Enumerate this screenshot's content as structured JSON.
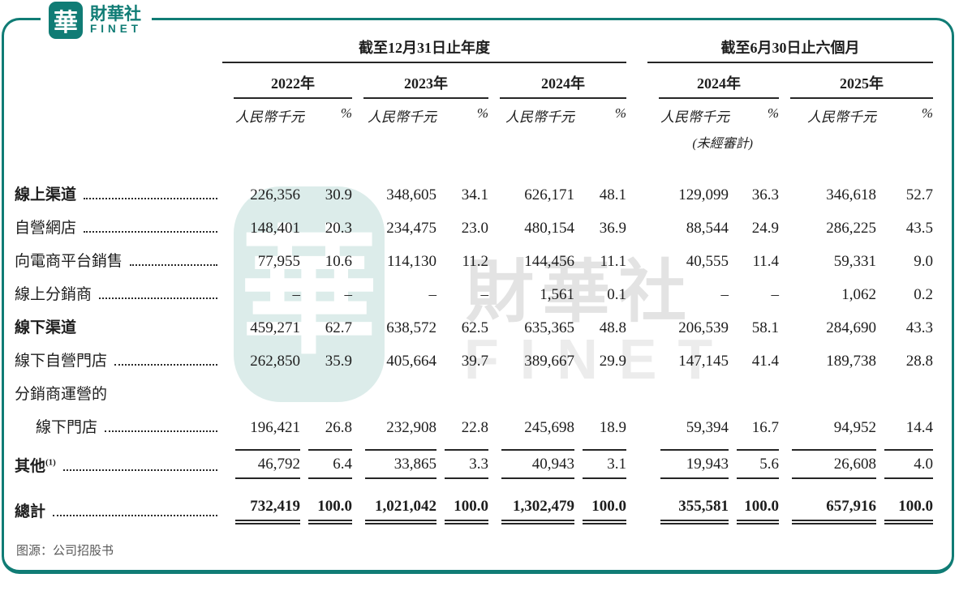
{
  "brand": {
    "logo_char": "華",
    "name_zh": "財華社",
    "name_en": "FINET",
    "accent_color": "#107c75"
  },
  "watermark": {
    "seal_char": "華",
    "text_zh": "財華社",
    "text_en": "FINET",
    "seal_color": "#dcecea",
    "text_color": "#e3e3e3"
  },
  "table": {
    "col_groups": [
      {
        "title": "截至12月31日止年度",
        "years": [
          "2022年",
          "2023年",
          "2024年"
        ]
      },
      {
        "title": "截至6月30日止六個月",
        "years": [
          "2024年",
          "2025年"
        ]
      }
    ],
    "unit_label": "人民幣千元",
    "pct_label": "%",
    "unaudited_note": "(未經審計)",
    "rows": [
      {
        "label": "線上渠道",
        "bold": true,
        "leader": true,
        "rule": "none",
        "values": [
          "226,356",
          "30.9",
          "348,605",
          "34.1",
          "626,171",
          "48.1",
          "129,099",
          "36.3",
          "346,618",
          "52.7"
        ]
      },
      {
        "label": "自營網店",
        "bold": false,
        "leader": true,
        "rule": "none",
        "values": [
          "148,401",
          "20.3",
          "234,475",
          "23.0",
          "480,154",
          "36.9",
          "88,544",
          "24.9",
          "286,225",
          "43.5"
        ]
      },
      {
        "label": "向電商平台銷售",
        "bold": false,
        "leader": true,
        "rule": "none",
        "values": [
          "77,955",
          "10.6",
          "114,130",
          "11.2",
          "144,456",
          "11.1",
          "40,555",
          "11.4",
          "59,331",
          "9.0"
        ]
      },
      {
        "label": "線上分銷商",
        "bold": false,
        "leader": true,
        "rule": "none",
        "values": [
          "–",
          "–",
          "–",
          "–",
          "1,561",
          "0.1",
          "–",
          "–",
          "1,062",
          "0.2"
        ]
      },
      {
        "label": "線下渠道",
        "bold": true,
        "leader": false,
        "rule": "none",
        "values": [
          "459,271",
          "62.7",
          "638,572",
          "62.5",
          "635,365",
          "48.8",
          "206,539",
          "58.1",
          "284,690",
          "43.3"
        ]
      },
      {
        "label": "線下自營門店",
        "bold": false,
        "leader": true,
        "rule": "none",
        "values": [
          "262,850",
          "35.9",
          "405,664",
          "39.7",
          "389,667",
          "29.9",
          "147,145",
          "41.4",
          "189,738",
          "28.8"
        ]
      },
      {
        "label": "分銷商運營的",
        "bold": false,
        "leader": false,
        "rule": "none",
        "values": []
      },
      {
        "label": "線下門店",
        "indent": true,
        "bold": false,
        "leader": true,
        "rule": "none",
        "values": [
          "196,421",
          "26.8",
          "232,908",
          "22.8",
          "245,698",
          "18.9",
          "59,394",
          "16.7",
          "94,952",
          "14.4"
        ]
      },
      {
        "label": "其他",
        "sup": "(1)",
        "bold": true,
        "leader": true,
        "rule": "other",
        "values": [
          "46,792",
          "6.4",
          "33,865",
          "3.3",
          "40,943",
          "3.1",
          "19,943",
          "5.6",
          "26,608",
          "4.0"
        ]
      },
      {
        "label": "總計",
        "bold": true,
        "leader": true,
        "rule": "total",
        "values_bold": true,
        "values": [
          "732,419",
          "100.0",
          "1,021,042",
          "100.0",
          "1,302,479",
          "100.0",
          "355,581",
          "100.0",
          "657,916",
          "100.0"
        ]
      }
    ]
  },
  "caption": "图源：公司招股书"
}
